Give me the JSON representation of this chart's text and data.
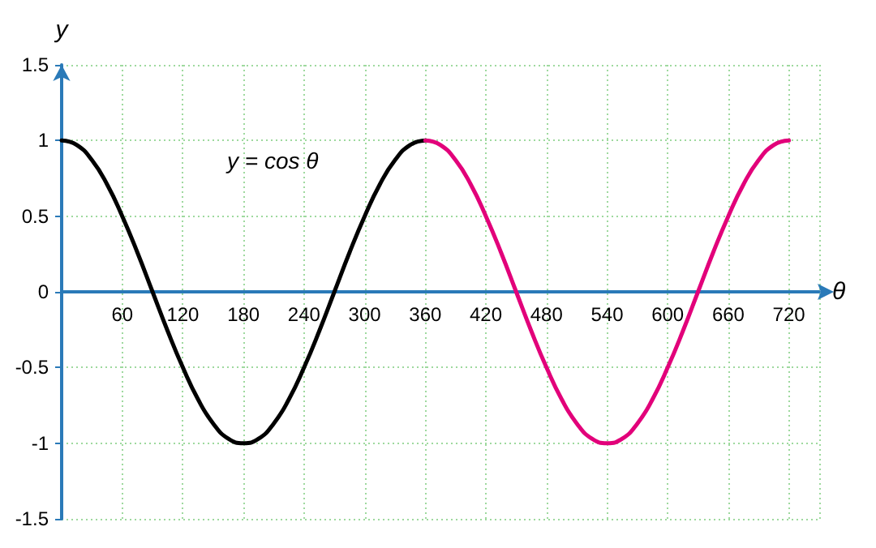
{
  "chart_data": {
    "type": "line",
    "xlabel": "θ",
    "ylabel": "y",
    "annotations": [
      "y = cos θ"
    ],
    "xlim": [
      0,
      750
    ],
    "xticks": [
      60,
      120,
      180,
      240,
      300,
      360,
      420,
      480,
      540,
      600,
      660,
      720
    ],
    "ylim": [
      -1.5,
      1.5
    ],
    "yticks": [
      -1.5,
      -1,
      -0.5,
      0,
      0.5,
      1,
      1.5
    ],
    "grid": true,
    "marker": "none",
    "line_style": "solid",
    "series": [
      {
        "color": "#000000",
        "x": [
          0,
          15,
          30,
          45,
          60,
          75,
          90,
          105,
          120,
          135,
          150,
          165,
          180,
          195,
          210,
          225,
          240,
          255,
          270,
          285,
          300,
          315,
          330,
          345,
          360
        ],
        "values": [
          1,
          0.97,
          0.87,
          0.71,
          0.5,
          0.26,
          0,
          -0.26,
          -0.5,
          -0.71,
          -0.87,
          -0.97,
          -1,
          -0.97,
          -0.87,
          -0.71,
          -0.5,
          -0.26,
          0,
          0.26,
          0.5,
          0.71,
          0.87,
          0.97,
          1
        ]
      },
      {
        "color": "#e2007a",
        "x": [
          360,
          375,
          390,
          405,
          420,
          435,
          450,
          465,
          480,
          495,
          510,
          525,
          540,
          555,
          570,
          585,
          600,
          615,
          630,
          645,
          660,
          675,
          690,
          705,
          720
        ],
        "values": [
          1,
          0.97,
          0.87,
          0.71,
          0.5,
          0.26,
          0,
          -0.26,
          -0.5,
          -0.71,
          -0.87,
          -0.97,
          -1,
          -0.97,
          -0.87,
          -0.71,
          -0.5,
          -0.26,
          0,
          0.26,
          0.5,
          0.71,
          0.87,
          0.97,
          1
        ]
      }
    ]
  }
}
